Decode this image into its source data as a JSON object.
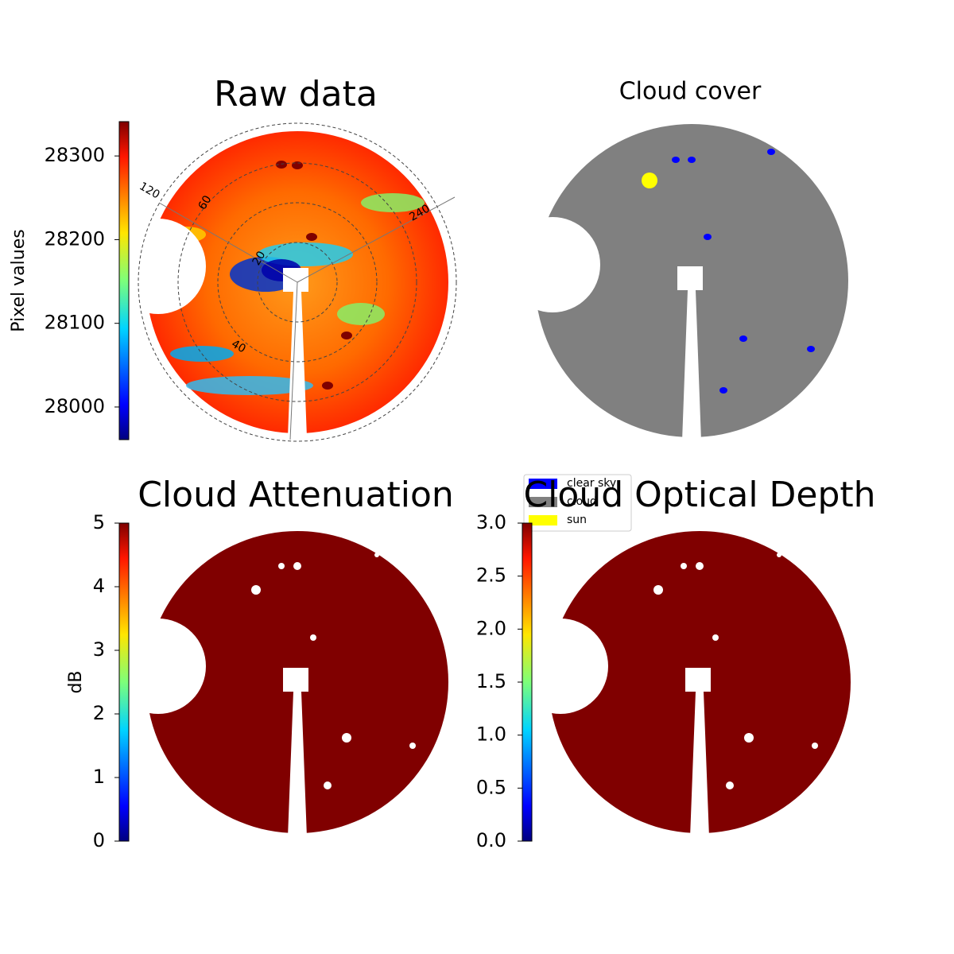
{
  "chart_data": [
    {
      "type": "image",
      "title": "Raw data",
      "colorbar_label": "Pixel values",
      "colormap": "jet",
      "clim": [
        27961,
        28341
      ],
      "cticks": [
        28000,
        28100,
        28200,
        28300
      ],
      "annotations": [
        "120",
        "60",
        "20",
        "40",
        "240"
      ]
    },
    {
      "type": "image",
      "title": "Cloud cover",
      "legend": [
        {
          "name": "clear sky",
          "color": "#0000ff"
        },
        {
          "name": "cloud",
          "color": "#808080"
        },
        {
          "name": "sun",
          "color": "#ffff00"
        }
      ]
    },
    {
      "type": "image",
      "title": "Cloud Attenuation",
      "colorbar_label": "dB",
      "colormap": "jet",
      "clim": [
        0,
        5
      ],
      "cticks": [
        0,
        1,
        2,
        3,
        4,
        5
      ]
    },
    {
      "type": "image",
      "title": "Cloud Optical Depth",
      "colormap": "jet",
      "clim": [
        0,
        3
      ],
      "cticks": [
        {
          "value": 0,
          "label": "0.0"
        },
        {
          "value": 0.5,
          "label": "0.5"
        },
        {
          "value": 1,
          "label": "1.0"
        },
        {
          "value": 1.5,
          "label": "1.5"
        },
        {
          "value": 2,
          "label": "2.0"
        },
        {
          "value": 2.5,
          "label": "2.5"
        },
        {
          "value": 3,
          "label": "3.0"
        }
      ]
    }
  ]
}
